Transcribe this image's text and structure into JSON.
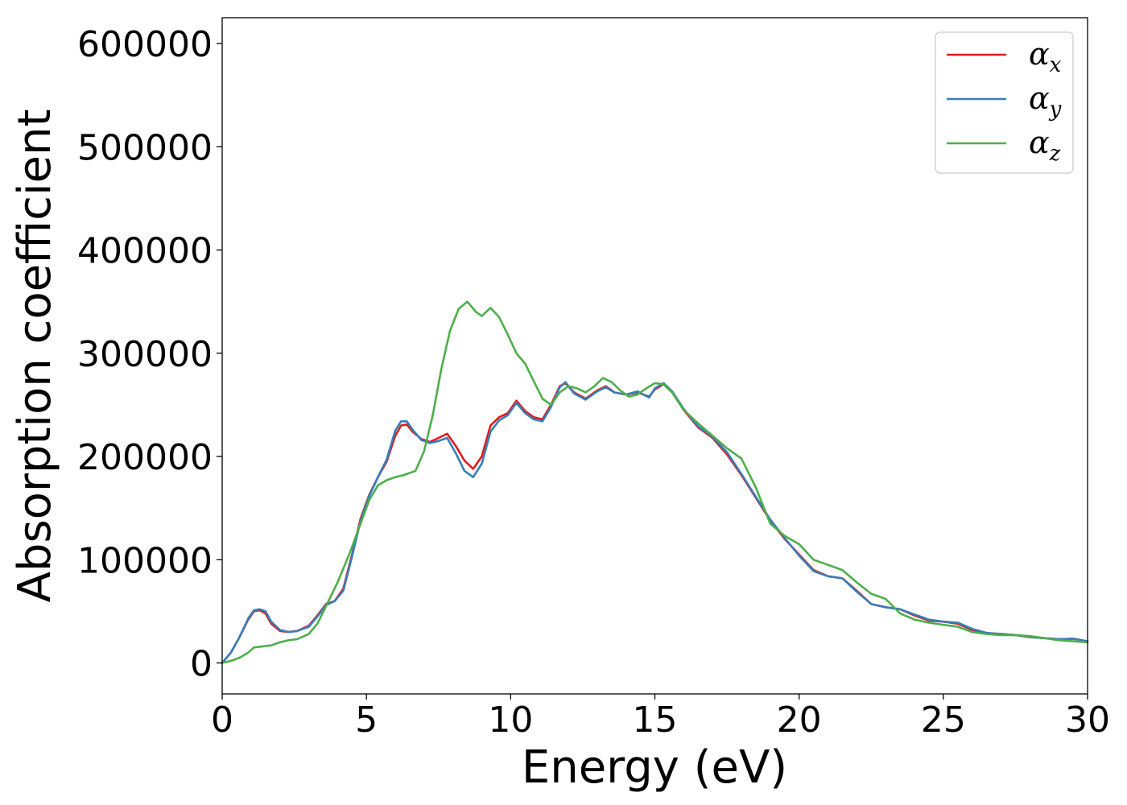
{
  "chart_data": {
    "type": "line",
    "xlabel": "Energy (eV)",
    "ylabel": "Absorption coefficient",
    "xlim": [
      0,
      30
    ],
    "ylim": [
      -30000,
      625000
    ],
    "xticks": [
      0,
      5,
      10,
      15,
      20,
      25,
      30
    ],
    "xtick_labels": [
      "0",
      "5",
      "10",
      "15",
      "20",
      "25",
      "30"
    ],
    "yticks": [
      0,
      100000,
      200000,
      300000,
      400000,
      500000,
      600000
    ],
    "ytick_labels": [
      "0",
      "100000",
      "200000",
      "300000",
      "400000",
      "500000",
      "600000"
    ],
    "grid": false,
    "legend_position": "top-right",
    "series": [
      {
        "name": "α",
        "subscript": "x",
        "color": "#e41a1c",
        "x": [
          0,
          0.3,
          0.6,
          0.9,
          1.1,
          1.3,
          1.5,
          1.7,
          2.0,
          2.3,
          2.6,
          3.0,
          3.3,
          3.6,
          3.9,
          4.2,
          4.5,
          4.8,
          5.1,
          5.4,
          5.7,
          6.0,
          6.2,
          6.4,
          6.6,
          6.9,
          7.2,
          7.5,
          7.8,
          8.1,
          8.4,
          8.7,
          9.0,
          9.3,
          9.6,
          9.9,
          10.2,
          10.5,
          10.8,
          11.1,
          11.4,
          11.7,
          11.9,
          12.2,
          12.6,
          13.0,
          13.3,
          13.6,
          14.0,
          14.4,
          14.8,
          15.0,
          15.3,
          15.6,
          16.0,
          16.5,
          17.0,
          17.5,
          18.0,
          18.5,
          19.0,
          19.5,
          20.0,
          20.5,
          21.0,
          21.5,
          22.0,
          22.5,
          23.0,
          23.5,
          24.0,
          24.5,
          25.0,
          25.5,
          26.0,
          26.5,
          27.0,
          27.5,
          28.0,
          28.5,
          29.0,
          29.5,
          30.0
        ],
        "y": [
          0,
          10000,
          25000,
          42000,
          50000,
          51000,
          48000,
          38000,
          31000,
          30000,
          31000,
          36000,
          46000,
          57000,
          60000,
          72000,
          105000,
          140000,
          163000,
          180000,
          195000,
          220000,
          230000,
          231000,
          224000,
          217000,
          214000,
          218000,
          222000,
          210000,
          196000,
          188000,
          200000,
          230000,
          238000,
          242000,
          254000,
          244000,
          238000,
          236000,
          250000,
          268000,
          271000,
          262000,
          256000,
          264000,
          268000,
          262000,
          260000,
          262000,
          258000,
          265000,
          270000,
          262000,
          245000,
          228000,
          218000,
          202000,
          182000,
          160000,
          138000,
          120000,
          105000,
          90000,
          84000,
          82000,
          70000,
          57000,
          54000,
          52000,
          46000,
          41000,
          40000,
          38000,
          32000,
          29000,
          28000,
          27000,
          25000,
          24000,
          23000,
          23500,
          21000
        ]
      },
      {
        "name": "α",
        "subscript": "y",
        "color": "#377eb8",
        "x": [
          0,
          0.3,
          0.6,
          0.9,
          1.1,
          1.3,
          1.5,
          1.7,
          2.0,
          2.3,
          2.6,
          3.0,
          3.3,
          3.6,
          3.9,
          4.2,
          4.5,
          4.8,
          5.1,
          5.4,
          5.7,
          6.0,
          6.2,
          6.4,
          6.6,
          6.9,
          7.2,
          7.5,
          7.8,
          8.1,
          8.4,
          8.7,
          9.0,
          9.3,
          9.6,
          9.9,
          10.2,
          10.5,
          10.8,
          11.1,
          11.4,
          11.7,
          11.9,
          12.2,
          12.6,
          13.0,
          13.3,
          13.6,
          14.0,
          14.4,
          14.8,
          15.0,
          15.3,
          15.6,
          16.0,
          16.5,
          17.0,
          17.5,
          18.0,
          18.5,
          19.0,
          19.5,
          20.0,
          20.5,
          21.0,
          21.5,
          22.0,
          22.5,
          23.0,
          23.5,
          24.0,
          24.5,
          25.0,
          25.5,
          26.0,
          26.5,
          27.0,
          27.5,
          28.0,
          28.5,
          29.0,
          29.5,
          30.0
        ],
        "y": [
          0,
          10000,
          25000,
          43000,
          51000,
          52000,
          50000,
          40000,
          32000,
          30000,
          31000,
          35000,
          45000,
          56000,
          60000,
          70000,
          103000,
          138000,
          162000,
          180000,
          197000,
          225000,
          234000,
          234000,
          226000,
          216000,
          213000,
          215000,
          218000,
          203000,
          186000,
          180000,
          193000,
          224000,
          235000,
          240000,
          252000,
          242000,
          236000,
          234000,
          248000,
          267000,
          272000,
          261000,
          255000,
          263000,
          267000,
          262000,
          260000,
          263000,
          257000,
          266000,
          271000,
          263000,
          246000,
          229000,
          219000,
          204000,
          183000,
          161000,
          139000,
          121000,
          104000,
          89000,
          84000,
          82000,
          69000,
          57000,
          54000,
          52000,
          47000,
          42000,
          40000,
          39000,
          33000,
          29000,
          28000,
          27000,
          25000,
          24000,
          23000,
          23500,
          21000
        ]
      },
      {
        "name": "α",
        "subscript": "z",
        "color": "#4daf4a",
        "x": [
          0,
          0.3,
          0.6,
          0.9,
          1.1,
          1.4,
          1.7,
          2.0,
          2.3,
          2.6,
          3.0,
          3.3,
          3.6,
          4.0,
          4.4,
          4.8,
          5.1,
          5.4,
          5.7,
          6.0,
          6.3,
          6.7,
          7.0,
          7.3,
          7.6,
          7.9,
          8.2,
          8.5,
          8.8,
          9.0,
          9.3,
          9.6,
          9.9,
          10.2,
          10.5,
          10.8,
          11.1,
          11.4,
          11.7,
          12.0,
          12.3,
          12.6,
          12.9,
          13.2,
          13.5,
          13.8,
          14.1,
          14.4,
          14.7,
          15.0,
          15.3,
          15.6,
          16.0,
          16.5,
          17.0,
          17.5,
          18.0,
          18.5,
          19.0,
          19.5,
          20.0,
          20.5,
          21.0,
          21.5,
          22.0,
          22.5,
          23.0,
          23.5,
          24.0,
          24.5,
          25.0,
          25.5,
          26.0,
          26.5,
          27.0,
          27.5,
          28.0,
          28.5,
          29.0,
          29.5,
          30.0
        ],
        "y": [
          0,
          2000,
          5000,
          10000,
          15000,
          16000,
          17000,
          20000,
          22000,
          23000,
          28000,
          38000,
          55000,
          78000,
          105000,
          135000,
          158000,
          172000,
          177000,
          180000,
          182000,
          186000,
          205000,
          240000,
          285000,
          322000,
          343000,
          350000,
          340000,
          336000,
          344000,
          335000,
          318000,
          300000,
          290000,
          273000,
          256000,
          250000,
          262000,
          268000,
          266000,
          262000,
          268000,
          276000,
          272000,
          264000,
          258000,
          260000,
          266000,
          271000,
          270000,
          262000,
          245000,
          232000,
          220000,
          208000,
          198000,
          170000,
          135000,
          123000,
          115000,
          100000,
          95000,
          90000,
          78000,
          67000,
          62000,
          48000,
          42000,
          39000,
          37000,
          35000,
          30000,
          28000,
          27000,
          27000,
          26000,
          24000,
          22000,
          21000,
          20000
        ]
      }
    ]
  }
}
